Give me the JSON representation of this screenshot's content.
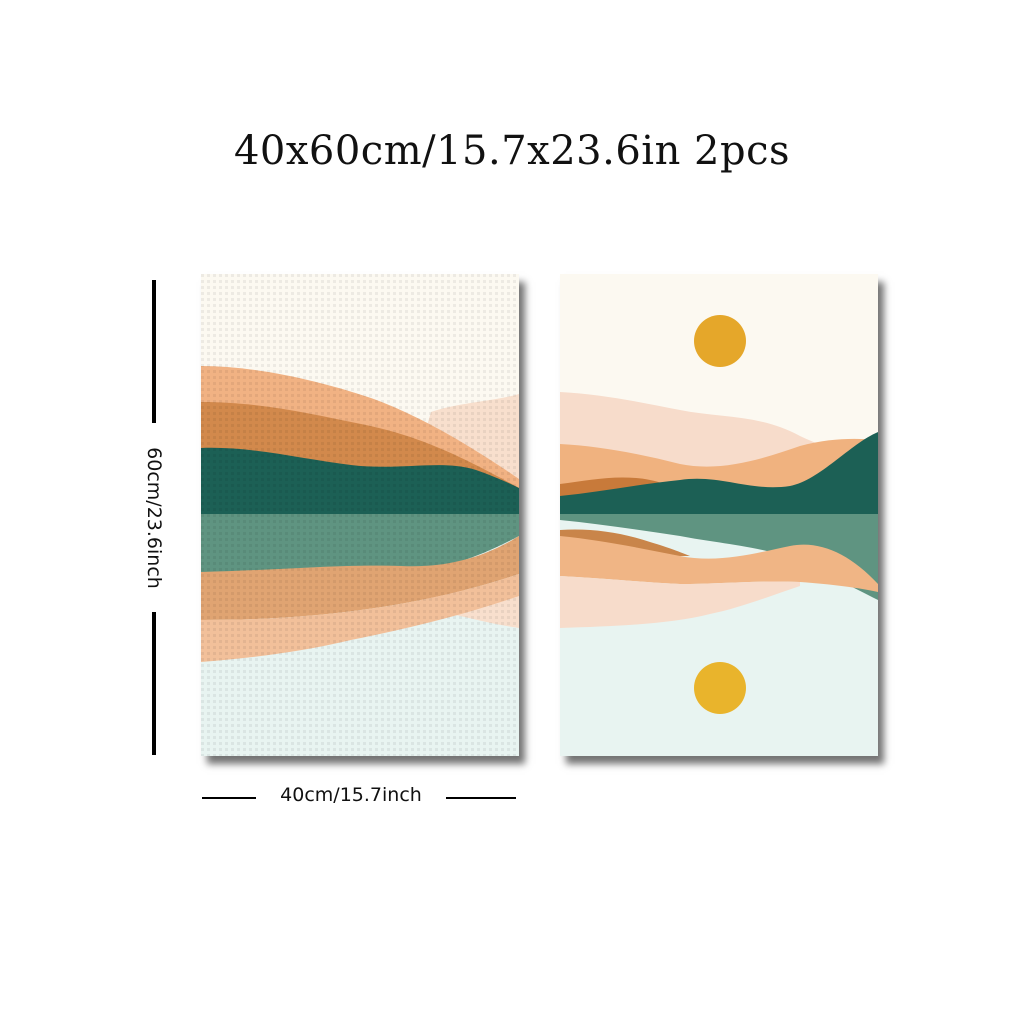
{
  "title": "40x60cm/15.7x23.6in 2pcs",
  "dimensions": {
    "height_label": "60cm/23.6inch",
    "width_label": "40cm/15.7inch"
  },
  "product": {
    "pieces": 2,
    "panels": [
      {
        "subject": "layered-mountains-reflection"
      },
      {
        "subject": "sun-over-mountains-reflection"
      }
    ]
  },
  "colors": {
    "sky": "#fcf9f1",
    "water_light": "#e8f4f1",
    "teal_dark": "#1c6055",
    "teal_reflection": "#5f9481",
    "orange_light": "#f2b485",
    "orange_mid": "#d98c4e",
    "orange_dark": "#c87a3a",
    "peach_pale": "#f7dccb",
    "sun": "#e5a72a",
    "sun_reflection": "#e9b42c"
  }
}
